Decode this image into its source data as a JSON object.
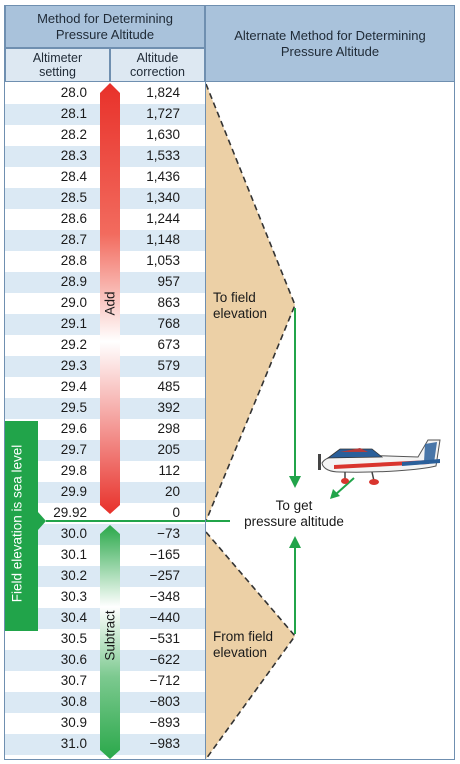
{
  "header": {
    "left_title": "Method for Determining\nPressure Altitude",
    "right_title": "Alternate Method for Determining\nPressure Altitude",
    "col_altimeter": "Altimeter\nsetting",
    "col_correction": "Altitude\ncorrection"
  },
  "rows": [
    {
      "setting": "28.0",
      "correction": "1,824"
    },
    {
      "setting": "28.1",
      "correction": "1,727"
    },
    {
      "setting": "28.2",
      "correction": "1,630"
    },
    {
      "setting": "28.3",
      "correction": "1,533"
    },
    {
      "setting": "28.4",
      "correction": "1,436"
    },
    {
      "setting": "28.5",
      "correction": "1,340"
    },
    {
      "setting": "28.6",
      "correction": "1,244"
    },
    {
      "setting": "28.7",
      "correction": "1,148"
    },
    {
      "setting": "28.8",
      "correction": "1,053"
    },
    {
      "setting": "28.9",
      "correction": "957"
    },
    {
      "setting": "29.0",
      "correction": "863"
    },
    {
      "setting": "29.1",
      "correction": "768"
    },
    {
      "setting": "29.2",
      "correction": "673"
    },
    {
      "setting": "29.3",
      "correction": "579"
    },
    {
      "setting": "29.4",
      "correction": "485"
    },
    {
      "setting": "29.5",
      "correction": "392"
    },
    {
      "setting": "29.6",
      "correction": "298"
    },
    {
      "setting": "29.7",
      "correction": "205"
    },
    {
      "setting": "29.8",
      "correction": "112"
    },
    {
      "setting": "29.9",
      "correction": "20"
    },
    {
      "setting": "29.92",
      "correction": "0"
    },
    {
      "setting": "30.0",
      "correction": "−73"
    },
    {
      "setting": "30.1",
      "correction": "−165"
    },
    {
      "setting": "30.2",
      "correction": "−257"
    },
    {
      "setting": "30.3",
      "correction": "−348"
    },
    {
      "setting": "30.4",
      "correction": "−440"
    },
    {
      "setting": "30.5",
      "correction": "−531"
    },
    {
      "setting": "30.6",
      "correction": "−622"
    },
    {
      "setting": "30.7",
      "correction": "−712"
    },
    {
      "setting": "30.8",
      "correction": "−803"
    },
    {
      "setting": "30.9",
      "correction": "−893"
    },
    {
      "setting": "31.0",
      "correction": "−983"
    }
  ],
  "arrows": {
    "add_label": "Add",
    "subtract_label": "Subtract",
    "add_color": "#e8312a",
    "subtract_color": "#2aa84a"
  },
  "side_label": "Field elevation is sea level",
  "alternate": {
    "to_field": "To field\nelevation",
    "from_field": "From field\nelevation",
    "to_get": "To get\npressure altitude",
    "triangle_color": "#ecd0a6",
    "arrow_color": "#21a44a",
    "aircraft_icon": "airplane-icon"
  }
}
